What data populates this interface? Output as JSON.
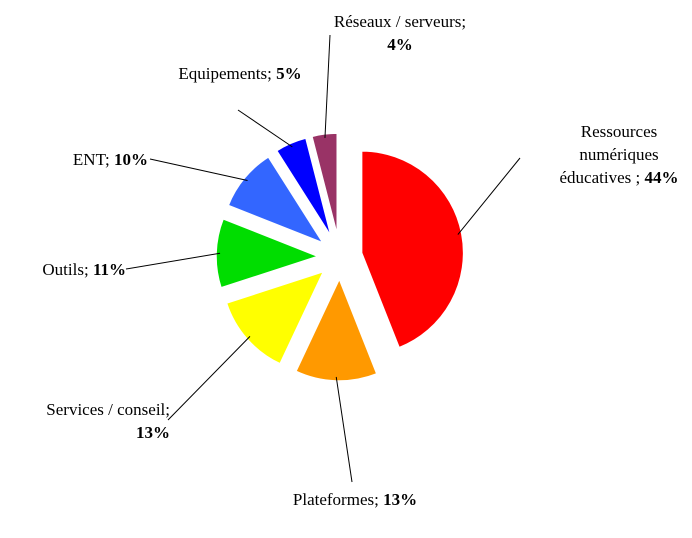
{
  "chart_data": {
    "type": "pie",
    "categories": [
      "Ressources numériques éducatives ;",
      "Plateformes;",
      "Services / conseil;",
      "Outils;",
      "ENT;",
      "Equipements;",
      "Réseaux / serveurs;"
    ],
    "values": [
      44,
      13,
      13,
      11,
      10,
      5,
      4
    ],
    "value_labels": [
      "44%",
      "13%",
      "13%",
      "11%",
      "10%",
      "5%",
      "4%"
    ],
    "colors": [
      "#ff0000",
      "#ff9900",
      "#ffff00",
      "#00dd00",
      "#3366ff",
      "#0000ff",
      "#993366"
    ]
  }
}
